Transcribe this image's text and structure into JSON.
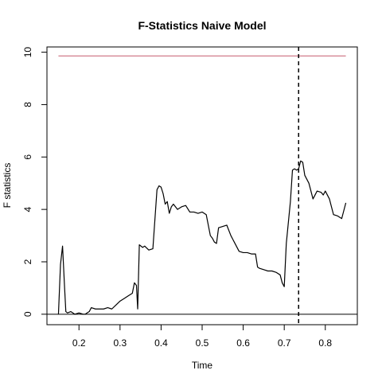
{
  "chart_data": {
    "type": "line",
    "title": "F-Statistics Naive Model",
    "xlabel": "Time",
    "ylabel": "F statistics",
    "xlim": [
      0.122,
      0.878
    ],
    "ylim": [
      -0.4,
      10.2
    ],
    "x_ticks": [
      0.2,
      0.3,
      0.4,
      0.5,
      0.6,
      0.7,
      0.8
    ],
    "x_tick_labels": [
      "0.2",
      "0.3",
      "0.4",
      "0.5",
      "0.6",
      "0.7",
      "0.8"
    ],
    "y_ticks": [
      0,
      2,
      4,
      6,
      8,
      10
    ],
    "y_tick_labels": [
      "0",
      "2",
      "4",
      "6",
      "8",
      "10"
    ],
    "critical_value": {
      "y": 9.86,
      "x_start": 0.15,
      "x_end": 0.85,
      "color": "#c65a6e"
    },
    "zero_line": {
      "y": 0,
      "color": "#000000"
    },
    "break_line": {
      "x": 0.735,
      "color": "#000000",
      "style": "dashed"
    },
    "grid": false,
    "legend": "none",
    "series": [
      {
        "color": "#000000",
        "x": [
          0.15,
          0.155,
          0.16,
          0.165,
          0.168,
          0.172,
          0.18,
          0.19,
          0.2,
          0.21,
          0.215,
          0.22,
          0.225,
          0.23,
          0.24,
          0.25,
          0.26,
          0.27,
          0.28,
          0.29,
          0.3,
          0.31,
          0.32,
          0.33,
          0.335,
          0.34,
          0.343,
          0.347,
          0.355,
          0.36,
          0.37,
          0.38,
          0.39,
          0.395,
          0.4,
          0.405,
          0.41,
          0.415,
          0.42,
          0.425,
          0.43,
          0.44,
          0.45,
          0.46,
          0.47,
          0.48,
          0.49,
          0.5,
          0.51,
          0.52,
          0.525,
          0.53,
          0.535,
          0.54,
          0.55,
          0.56,
          0.57,
          0.575,
          0.58,
          0.59,
          0.6,
          0.61,
          0.62,
          0.63,
          0.635,
          0.64,
          0.65,
          0.66,
          0.67,
          0.68,
          0.69,
          0.695,
          0.7,
          0.705,
          0.71,
          0.715,
          0.72,
          0.725,
          0.73,
          0.735,
          0.74,
          0.745,
          0.75,
          0.76,
          0.765,
          0.77,
          0.78,
          0.79,
          0.795,
          0.8,
          0.81,
          0.82,
          0.83,
          0.84,
          0.85
        ],
        "y": [
          0.0,
          1.9,
          2.6,
          1.0,
          0.1,
          0.05,
          0.1,
          0.0,
          0.05,
          0.0,
          0.0,
          0.05,
          0.1,
          0.25,
          0.2,
          0.2,
          0.2,
          0.25,
          0.2,
          0.35,
          0.5,
          0.6,
          0.7,
          0.8,
          1.2,
          1.1,
          0.2,
          2.65,
          2.55,
          2.6,
          2.45,
          2.5,
          4.75,
          4.9,
          4.85,
          4.6,
          4.2,
          4.3,
          3.85,
          4.1,
          4.2,
          4.0,
          4.1,
          4.15,
          3.9,
          3.9,
          3.85,
          3.9,
          3.8,
          3.0,
          2.9,
          2.75,
          2.7,
          3.3,
          3.35,
          3.4,
          3.0,
          2.85,
          2.7,
          2.4,
          2.35,
          2.35,
          2.3,
          2.3,
          1.8,
          1.75,
          1.7,
          1.65,
          1.65,
          1.6,
          1.5,
          1.2,
          1.05,
          2.7,
          3.5,
          4.3,
          5.5,
          5.55,
          5.5,
          5.55,
          5.85,
          5.8,
          5.3,
          5.0,
          4.7,
          4.4,
          4.7,
          4.65,
          4.55,
          4.7,
          4.4,
          3.8,
          3.75,
          3.65,
          4.25
        ]
      }
    ]
  }
}
